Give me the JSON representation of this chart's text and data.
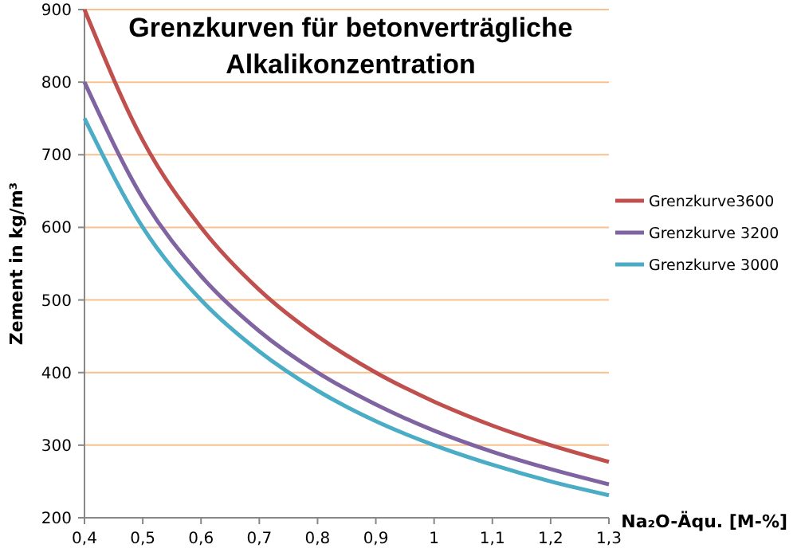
{
  "chart_data": {
    "type": "line",
    "title": "Grenzkurven für betonverträgliche Alkalikonzentration",
    "xlabel": "Na₂O-Äqu. [M-%]",
    "ylabel": "Zement in kg/m³",
    "categories": [
      "0,4",
      "0,5",
      "0,6",
      "0,7",
      "0,8",
      "0,9",
      "1",
      "1,1",
      "1,2",
      "1,3"
    ],
    "series": [
      {
        "name": "Grenzkurve3600",
        "color": "#c0504d",
        "values": [
          900,
          720,
          600,
          514,
          450,
          400,
          360,
          327,
          300,
          277
        ]
      },
      {
        "name": "Grenzkurve 3200",
        "color": "#8064a2",
        "values": [
          800,
          640,
          533,
          457,
          400,
          356,
          320,
          291,
          267,
          246
        ]
      },
      {
        "name": "Grenzkurve 3000",
        "color": "#4bacc6",
        "values": [
          750,
          600,
          500,
          429,
          375,
          333,
          300,
          273,
          250,
          231
        ]
      }
    ],
    "ylim": [
      200,
      900
    ],
    "yticks": [
      200,
      300,
      400,
      500,
      600,
      700,
      800,
      900
    ],
    "grid": "y",
    "legend": "right",
    "marker": "none",
    "line_style": "solid"
  }
}
